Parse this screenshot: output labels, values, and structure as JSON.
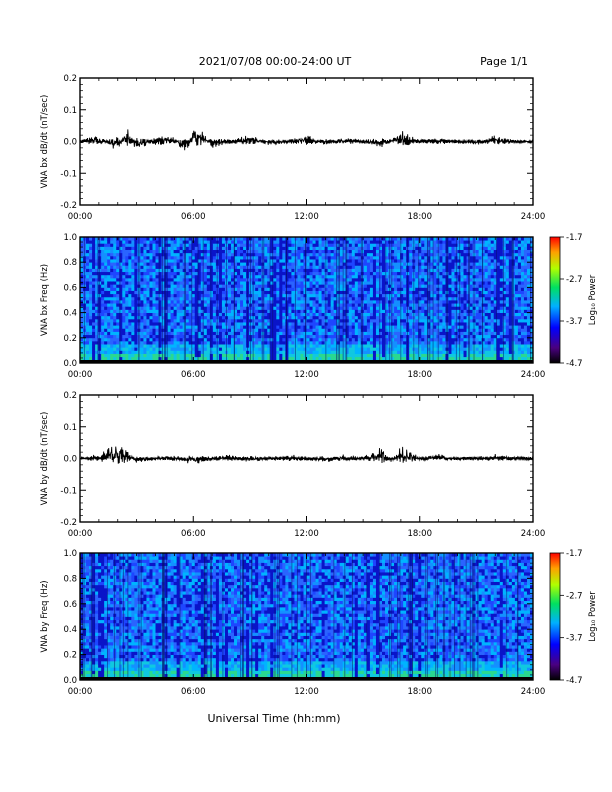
{
  "header": {
    "title": "2021/07/08  00:00-24:00 UT",
    "page_label": "Page 1/1"
  },
  "xaxis_title": "Universal Time (hh:mm)",
  "chart_data": [
    {
      "type": "line",
      "ylabel": "VNA bx dB/dt (nT/sec)",
      "xlim": [
        0,
        24
      ],
      "x_tick_labels": [
        "00:00",
        "06:00",
        "12:00",
        "18:00",
        "24:00"
      ],
      "ylim": [
        -0.2,
        0.2
      ],
      "y_tick_labels": [
        "0.2",
        "0.1",
        "0.0",
        "-0.1",
        "-0.2"
      ],
      "series": [
        {
          "x": [
            0,
            1,
            2,
            2.5,
            3,
            4,
            5,
            5.7,
            6,
            7,
            8,
            9,
            10,
            11,
            12,
            13,
            14,
            15,
            16,
            17,
            18,
            19,
            20,
            21,
            22,
            23,
            24
          ],
          "y": [
            0,
            0.01,
            -0.02,
            0.035,
            -0.02,
            0.01,
            0.005,
            -0.025,
            0.04,
            -0.01,
            0,
            0.01,
            -0.005,
            0,
            0.01,
            -0.005,
            0.005,
            0,
            -0.01,
            0.02,
            0,
            0.005,
            0,
            -0.005,
            0.01,
            0,
            0
          ]
        }
      ]
    },
    {
      "type": "heatmap",
      "ylabel": "VNA bx Freq (Hz)",
      "xlim": [
        0,
        24
      ],
      "x_tick_labels": [
        "00:00",
        "06:00",
        "12:00",
        "18:00",
        "24:00"
      ],
      "ylim": [
        0,
        1.0
      ],
      "y_tick_labels": [
        "1.0",
        "0.8",
        "0.6",
        "0.4",
        "0.2",
        "0.0"
      ],
      "colorbar": {
        "label": "Log₁₀ Power",
        "tick_labels": [
          "-1.7",
          "-2.7",
          "-3.7",
          "-4.7"
        ],
        "range": [
          -4.7,
          -1.7
        ]
      }
    },
    {
      "type": "line",
      "ylabel": "VNA by dB/dt (nT/sec)",
      "xlim": [
        0,
        24
      ],
      "x_tick_labels": [
        "00:00",
        "06:00",
        "12:00",
        "18:00",
        "24:00"
      ],
      "ylim": [
        -0.2,
        0.2
      ],
      "y_tick_labels": [
        "0.2",
        "0.1",
        "0.0",
        "-0.1",
        "-0.2"
      ],
      "series": [
        {
          "x": [
            0,
            1,
            2,
            3,
            4,
            5,
            6,
            7,
            8,
            9,
            10,
            11,
            12,
            13,
            14,
            15,
            16,
            16.5,
            17,
            18,
            19,
            20,
            21,
            22,
            23,
            24
          ],
          "y": [
            0,
            0.005,
            0.03,
            -0.005,
            0,
            0.005,
            -0.01,
            0,
            0.005,
            -0.005,
            0,
            0.005,
            0,
            -0.005,
            0.005,
            0,
            0.02,
            -0.01,
            0.025,
            0,
            0.005,
            0,
            0,
            0.005,
            0,
            0
          ]
        }
      ]
    },
    {
      "type": "heatmap",
      "ylabel": "VNA by Freq (Hz)",
      "xlim": [
        0,
        24
      ],
      "x_tick_labels": [
        "00:00",
        "06:00",
        "12:00",
        "18:00",
        "24:00"
      ],
      "ylim": [
        0,
        1.0
      ],
      "y_tick_labels": [
        "1.0",
        "0.8",
        "0.6",
        "0.4",
        "0.2",
        "0.0"
      ],
      "colorbar": {
        "label": "Log₁₀ Power",
        "tick_labels": [
          "-1.7",
          "-2.7",
          "-3.7",
          "-4.7"
        ],
        "range": [
          -4.7,
          -1.7
        ]
      }
    }
  ]
}
